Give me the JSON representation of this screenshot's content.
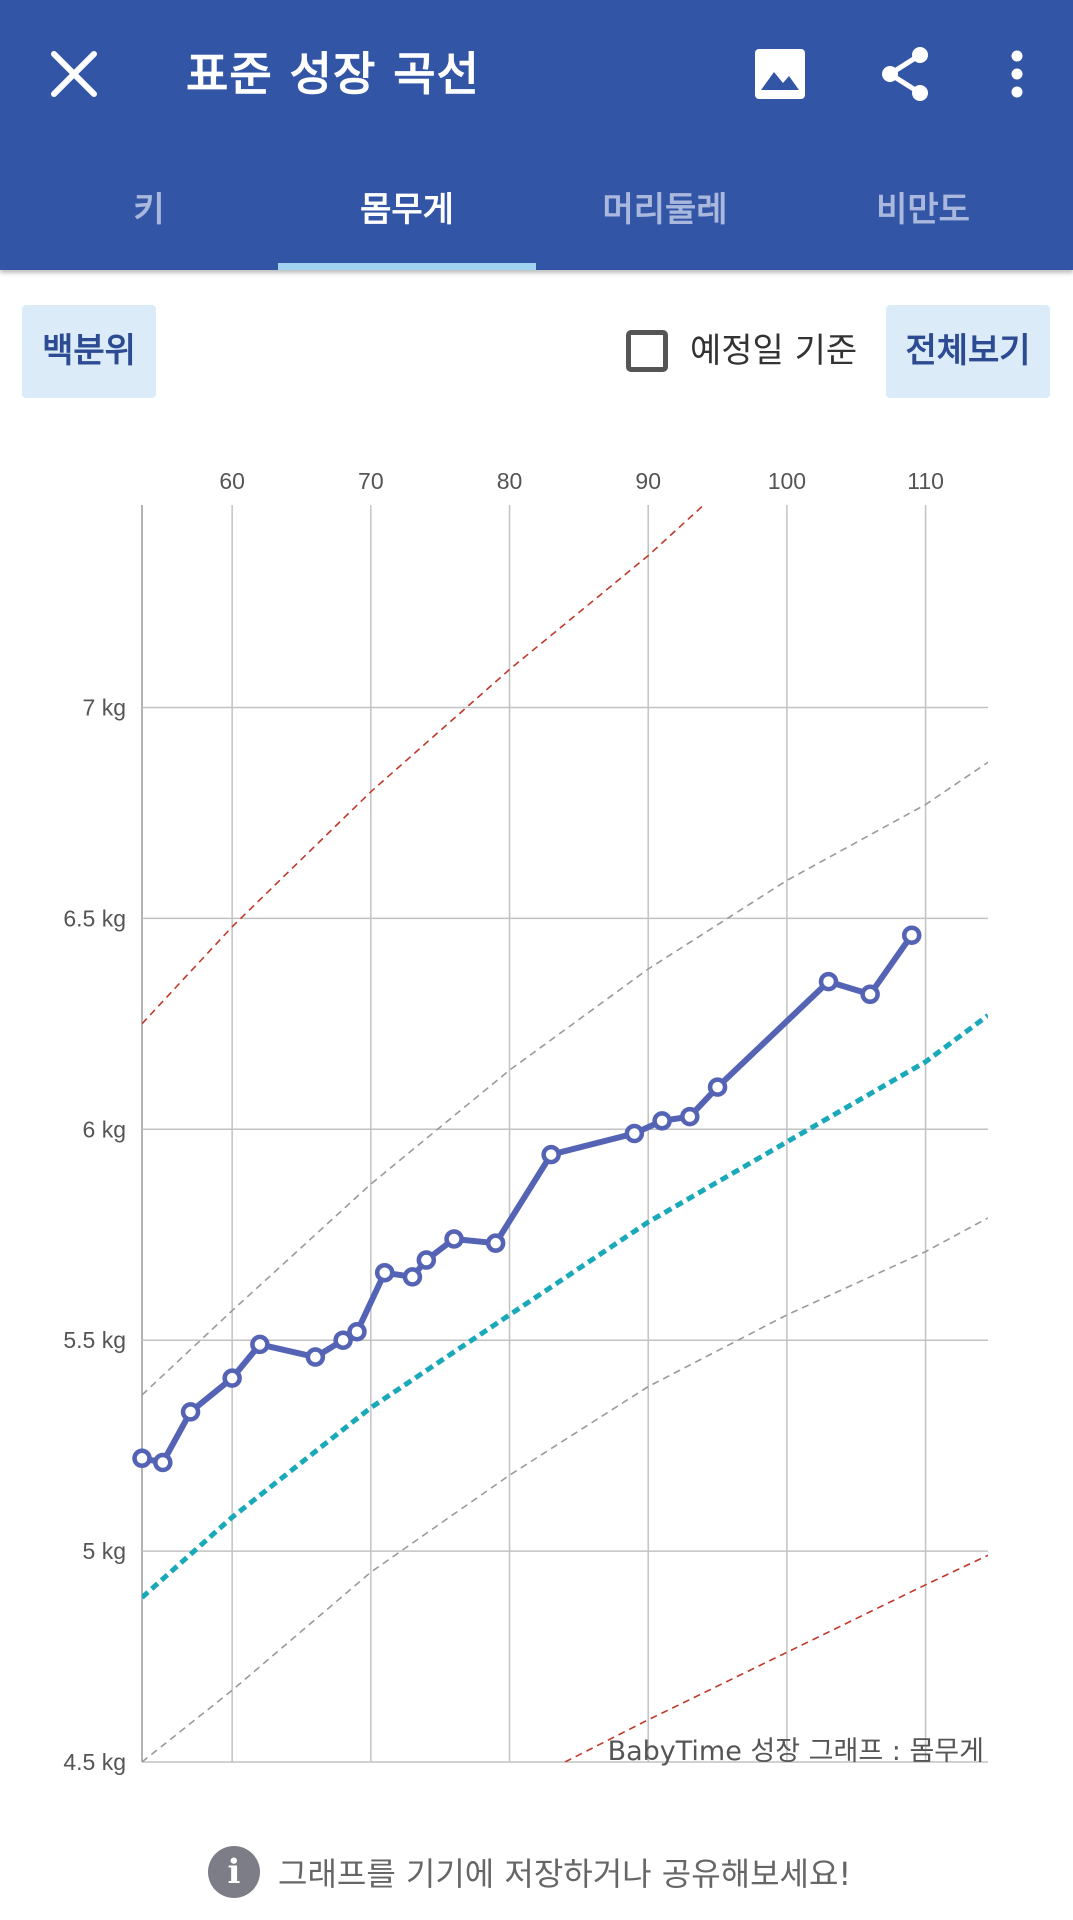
{
  "app_bar": {
    "title": "표준 성장 곡선",
    "close_icon": "close-icon",
    "image_icon": "image-icon",
    "share_icon": "share-icon",
    "menu_icon": "more-vert-icon",
    "background": "#3355a6"
  },
  "tabs": [
    {
      "label": "키",
      "active": false
    },
    {
      "label": "몸무게",
      "active": true
    },
    {
      "label": "머리둘레",
      "active": false
    },
    {
      "label": "비만도",
      "active": false
    }
  ],
  "controls": {
    "percentile_button": "백분위",
    "due_date_label": "예정일 기준",
    "due_date_checked": false,
    "view_all_button": "전체보기"
  },
  "chart_data": {
    "type": "line",
    "watermark": "BabyTime 성장 그래프 : 몸무게",
    "x_ticks": [
      60,
      70,
      80,
      90,
      100,
      110
    ],
    "y_ticks": [
      "4.5 kg",
      "5 kg",
      "5.5 kg",
      "6 kg",
      "6.5 kg",
      "7 kg"
    ],
    "xlim": [
      53.5,
      114.5
    ],
    "ylim": [
      4.5,
      7.48
    ],
    "grid": true,
    "measurements": {
      "color": "#5563b5",
      "x": [
        53.5,
        55,
        57,
        60,
        62,
        66,
        68,
        69,
        71,
        73,
        74,
        76,
        79,
        83,
        89,
        91,
        93,
        95,
        103,
        106,
        109
      ],
      "y": [
        5.22,
        5.21,
        5.33,
        5.41,
        5.49,
        5.46,
        5.5,
        5.52,
        5.66,
        5.65,
        5.69,
        5.74,
        5.73,
        5.94,
        5.99,
        6.02,
        6.03,
        6.1,
        6.35,
        6.32,
        6.46
      ]
    },
    "reference_curves": [
      {
        "style": "red-dashed",
        "color": "#c0392b",
        "x": [
          53.5,
          60,
          70,
          80,
          90,
          94
        ],
        "y": [
          6.25,
          6.48,
          6.8,
          7.09,
          7.36,
          7.48
        ]
      },
      {
        "style": "gray-dashed",
        "color": "#9a9a9a",
        "x": [
          53.5,
          60,
          70,
          80,
          90,
          100,
          110,
          114.5
        ],
        "y": [
          5.37,
          5.57,
          5.87,
          6.14,
          6.38,
          6.59,
          6.77,
          6.87
        ]
      },
      {
        "style": "median-teal",
        "color": "#1aa9b8",
        "x": [
          53.5,
          60,
          70,
          80,
          90,
          100,
          110,
          114.5
        ],
        "y": [
          4.89,
          5.08,
          5.34,
          5.56,
          5.78,
          5.97,
          6.16,
          6.27
        ]
      },
      {
        "style": "gray-dashed",
        "color": "#9a9a9a",
        "x": [
          53.5,
          60,
          70,
          80,
          90,
          100,
          110,
          114.5
        ],
        "y": [
          4.5,
          4.67,
          4.95,
          5.18,
          5.39,
          5.56,
          5.71,
          5.79
        ]
      },
      {
        "style": "red-dashed",
        "color": "#c0392b",
        "x": [
          84,
          90,
          100,
          110,
          114.5
        ],
        "y": [
          4.5,
          4.6,
          4.76,
          4.92,
          4.99
        ]
      }
    ]
  },
  "footer": {
    "info_icon": "info-icon",
    "text": "그래프를 기기에 저장하거나 공유해보세요!"
  }
}
